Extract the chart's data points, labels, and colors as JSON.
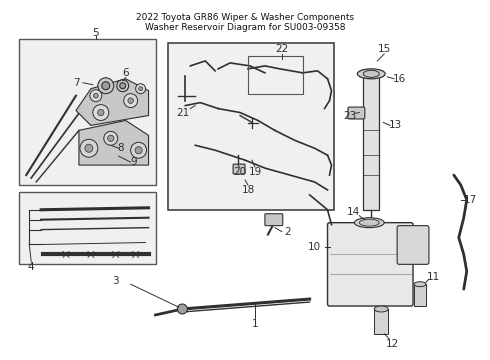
{
  "title_line1": "2022 Toyota GR86 Wiper & Washer Components",
  "title_line2": "Washer Reservoir Diagram for SU003-09358",
  "bg_color": "#f0f0f0",
  "white": "#ffffff",
  "lc": "#303030",
  "gray_light": "#c8c8c8",
  "gray_mid": "#a0a0a0",
  "figsize": [
    4.9,
    3.6
  ],
  "dpi": 100
}
